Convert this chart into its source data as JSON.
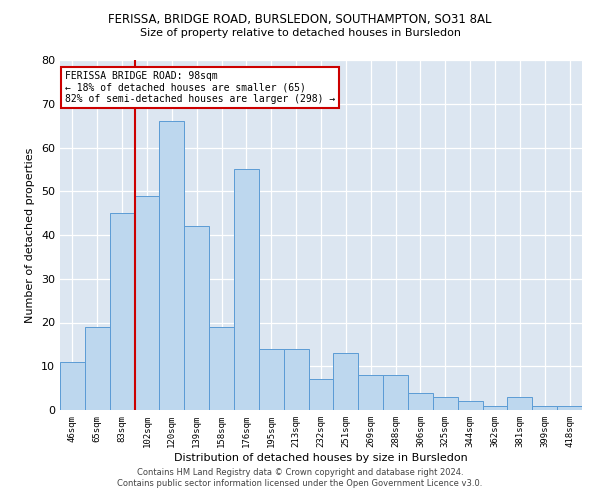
{
  "title1": "FERISSA, BRIDGE ROAD, BURSLEDON, SOUTHAMPTON, SO31 8AL",
  "title2": "Size of property relative to detached houses in Bursledon",
  "xlabel": "Distribution of detached houses by size in Bursledon",
  "ylabel": "Number of detached properties",
  "categories": [
    "46sqm",
    "65sqm",
    "83sqm",
    "102sqm",
    "120sqm",
    "139sqm",
    "158sqm",
    "176sqm",
    "195sqm",
    "213sqm",
    "232sqm",
    "251sqm",
    "269sqm",
    "288sqm",
    "306sqm",
    "325sqm",
    "344sqm",
    "362sqm",
    "381sqm",
    "399sqm",
    "418sqm"
  ],
  "values": [
    11,
    19,
    45,
    49,
    66,
    42,
    19,
    55,
    14,
    14,
    7,
    13,
    8,
    8,
    4,
    3,
    2,
    1,
    3,
    1,
    1
  ],
  "bar_color": "#bdd7ee",
  "bar_edge_color": "#5b9bd5",
  "background_color": "#dce6f1",
  "plot_bg_color": "#dce6f1",
  "ylim": [
    0,
    80
  ],
  "yticks": [
    0,
    10,
    20,
    30,
    40,
    50,
    60,
    70,
    80
  ],
  "vline_x_idx": 2.5,
  "vline_color": "#cc0000",
  "annotation_text": "FERISSA BRIDGE ROAD: 98sqm\n← 18% of detached houses are smaller (65)\n82% of semi-detached houses are larger (298) →",
  "annotation_box_color": "#ffffff",
  "annotation_box_edge": "#cc0000",
  "footer1": "Contains HM Land Registry data © Crown copyright and database right 2024.",
  "footer2": "Contains public sector information licensed under the Open Government Licence v3.0."
}
